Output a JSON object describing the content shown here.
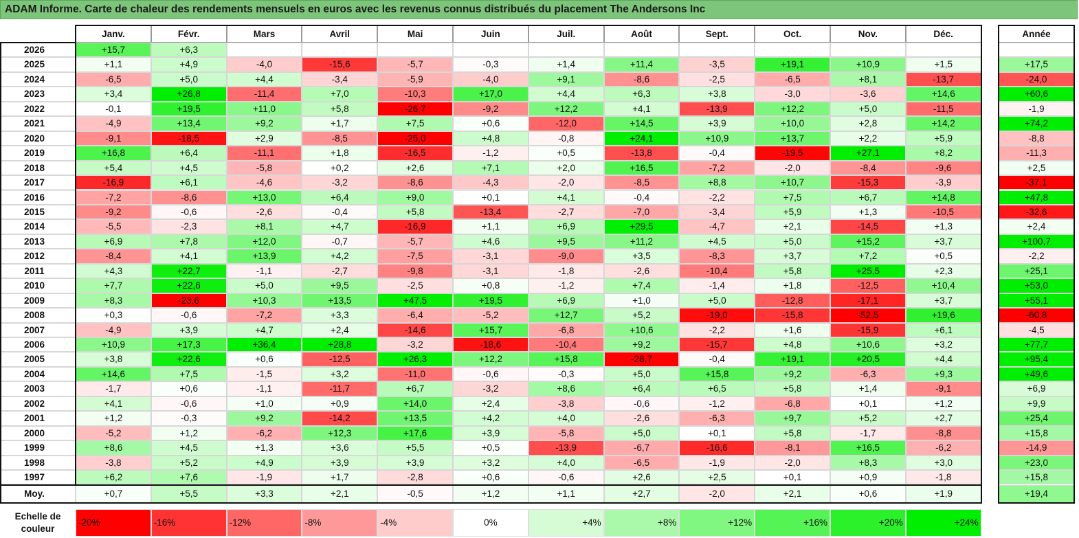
{
  "title": "ADAM Informe. Carte de chaleur des rendements mensuels en euros avec les revenus connus distribués du placement The Andersons Inc",
  "chart_data": {
    "type": "heatmap",
    "title": "ADAM Informe. Carte de chaleur des rendements mensuels en euros avec les revenus connus distribués du placement The Andersons Inc",
    "months": [
      "Janv.",
      "Févr.",
      "Mars",
      "Avril",
      "Mai",
      "Juin",
      "Juil.",
      "Août",
      "Sept.",
      "Oct.",
      "Nov.",
      "Déc."
    ],
    "year_header": "Année",
    "rows": [
      {
        "label": "2026",
        "values": [
          "+15,7",
          "+6,3",
          "",
          "",
          "",
          "",
          "",
          "",
          "",
          "",
          "",
          ""
        ],
        "year": ""
      },
      {
        "label": "2025",
        "values": [
          "+1,1",
          "+4,9",
          "-4,0",
          "-15,6",
          "-5,7",
          "-0,3",
          "+1,4",
          "+11,4",
          "-3,5",
          "+19,1",
          "+10,9",
          "+1,5"
        ],
        "year": "+17,5"
      },
      {
        "label": "2024",
        "values": [
          "-6,5",
          "+5,0",
          "+4,4",
          "-3,4",
          "-5,9",
          "-4,0",
          "+9,1",
          "-8,6",
          "-2,5",
          "-6,5",
          "+8,1",
          "-13,7"
        ],
        "year": "-24,0"
      },
      {
        "label": "2023",
        "values": [
          "+3,4",
          "+26,8",
          "-11,4",
          "+7,0",
          "-10,3",
          "+17,0",
          "+4,4",
          "+6,3",
          "+3,8",
          "-3,0",
          "-3,6",
          "+14,6"
        ],
        "year": "+60,6"
      },
      {
        "label": "2022",
        "values": [
          "-0,1",
          "+19,5",
          "+11,0",
          "+5,8",
          "-26,7",
          "-9,2",
          "+12,2",
          "+4,1",
          "-13,9",
          "+12,2",
          "+5,0",
          "-11,5"
        ],
        "year": "-1,9"
      },
      {
        "label": "2021",
        "values": [
          "-4,9",
          "+13,4",
          "+9,2",
          "+1,7",
          "+7,5",
          "+0,6",
          "-12,0",
          "+14,5",
          "+3,9",
          "+10,0",
          "+2,8",
          "+14,2"
        ],
        "year": "+74,2"
      },
      {
        "label": "2020",
        "values": [
          "-9,1",
          "-18,5",
          "+2,9",
          "-8,5",
          "-25,0",
          "+4,8",
          "-0,8",
          "+24,1",
          "+10,9",
          "+13,7",
          "+2,2",
          "+5,9"
        ],
        "year": "-8,8"
      },
      {
        "label": "2019",
        "values": [
          "+16,8",
          "+6,4",
          "-11,1",
          "+1,8",
          "-16,5",
          "-1,2",
          "+0,5",
          "-13,8",
          "-0,4",
          "-19,5",
          "+27,1",
          "+8,2"
        ],
        "year": "-11,3"
      },
      {
        "label": "2018",
        "values": [
          "+5,4",
          "+4,5",
          "-5,8",
          "+0,2",
          "+2,6",
          "+7,1",
          "+2,0",
          "+16,5",
          "-7,2",
          "-2,0",
          "-8,4",
          "-9,6"
        ],
        "year": "+2,5"
      },
      {
        "label": "2017",
        "values": [
          "-16,9",
          "+6,1",
          "-4,6",
          "-3,2",
          "-8,6",
          "-4,3",
          "-2,0",
          "-8,5",
          "+8,8",
          "+10,7",
          "-15,3",
          "-3,9"
        ],
        "year": "-37,1"
      },
      {
        "label": "2016",
        "values": [
          "-7,2",
          "-8,6",
          "+13,0",
          "+6,4",
          "+9,0",
          "+0,1",
          "+4,1",
          "-0,4",
          "-2,2",
          "+7,5",
          "+6,7",
          "+14,8"
        ],
        "year": "+47,8"
      },
      {
        "label": "2015",
        "values": [
          "-9,2",
          "-0,6",
          "-2,6",
          "-0,4",
          "+5,8",
          "-13,4",
          "-2,7",
          "-7,0",
          "-3,4",
          "+5,9",
          "+1,3",
          "-10,5"
        ],
        "year": "-32,6"
      },
      {
        "label": "2014",
        "values": [
          "-5,5",
          "-2,3",
          "+8,1",
          "+4,7",
          "-16,9",
          "+1,1",
          "+6,9",
          "+29,5",
          "-4,7",
          "+2,1",
          "-14,5",
          "+1,3"
        ],
        "year": "+2,4"
      },
      {
        "label": "2013",
        "values": [
          "+6,9",
          "+7,8",
          "+12,0",
          "-0,7",
          "-5,7",
          "+4,6",
          "+9,5",
          "+11,2",
          "+4,5",
          "+5,0",
          "+15,2",
          "+3,7"
        ],
        "year": "+100,7"
      },
      {
        "label": "2012",
        "values": [
          "-8,4",
          "+4,1",
          "+13,9",
          "+4,2",
          "-7,5",
          "-3,1",
          "-9,0",
          "+3,5",
          "-8,3",
          "+3,7",
          "+7,2",
          "+0,5"
        ],
        "year": "-2,2"
      },
      {
        "label": "2011",
        "values": [
          "+4,3",
          "+22,7",
          "-1,1",
          "-2,7",
          "-9,8",
          "-3,1",
          "-1,8",
          "-2,6",
          "-10,4",
          "+5,8",
          "+25,5",
          "+2,3"
        ],
        "year": "+25,1"
      },
      {
        "label": "2010",
        "values": [
          "+7,7",
          "+22,6",
          "+5,0",
          "+9,5",
          "-2,5",
          "+0,8",
          "-1,2",
          "+7,4",
          "-1,4",
          "+1,8",
          "-12,5",
          "+10,4"
        ],
        "year": "+53,0"
      },
      {
        "label": "2009",
        "values": [
          "+8,3",
          "-23,6",
          "+10,3",
          "+13,5",
          "+47,5",
          "+19,5",
          "+6,9",
          "+1,0",
          "+5,0",
          "-12,8",
          "-17,1",
          "+3,7"
        ],
        "year": "+55,1"
      },
      {
        "label": "2008",
        "values": [
          "+0,3",
          "-0,6",
          "-7,2",
          "+3,3",
          "-6,4",
          "-5,2",
          "+12,7",
          "+5,2",
          "-19,0",
          "-15,8",
          "-52,5",
          "+19,6"
        ],
        "year": "-60,8"
      },
      {
        "label": "2007",
        "values": [
          "-4,9",
          "+3,9",
          "+4,7",
          "+2,4",
          "-14,6",
          "+15,7",
          "-6,8",
          "+10,6",
          "-2,2",
          "+1,6",
          "-15,9",
          "+6,1"
        ],
        "year": "-4,5"
      },
      {
        "label": "2006",
        "values": [
          "+10,9",
          "+17,3",
          "+36,4",
          "+28,8",
          "-3,2",
          "-18,6",
          "-10,4",
          "+9,2",
          "-15,7",
          "+4,8",
          "+10,6",
          "+3,2"
        ],
        "year": "+77,7"
      },
      {
        "label": "2005",
        "values": [
          "+3,8",
          "+22,6",
          "+0,6",
          "-12,5",
          "+26,3",
          "+12,2",
          "+15,8",
          "-28,7",
          "-0,4",
          "+19,1",
          "+20,5",
          "+4,4"
        ],
        "year": "+95,4"
      },
      {
        "label": "2004",
        "values": [
          "+14,6",
          "+7,5",
          "-1,5",
          "+3,2",
          "-11,0",
          "-0,6",
          "-0,3",
          "+5,0",
          "+15,8",
          "+9,2",
          "-6,3",
          "+9,3"
        ],
        "year": "+49,6"
      },
      {
        "label": "2003",
        "values": [
          "-1,7",
          "+0,6",
          "-1,1",
          "-11,7",
          "+6,7",
          "-3,2",
          "+8,6",
          "+6,4",
          "+6,5",
          "+5,8",
          "+1,4",
          "-9,1"
        ],
        "year": "+6,9"
      },
      {
        "label": "2002",
        "values": [
          "+4,1",
          "-0,6",
          "+1,0",
          "+0,9",
          "+14,0",
          "+2,4",
          "-3,8",
          "-0,6",
          "-1,2",
          "-6,8",
          "+0,1",
          "+1,2"
        ],
        "year": "+9,9"
      },
      {
        "label": "2001",
        "values": [
          "+1,2",
          "-0,3",
          "+9,2",
          "-14,2",
          "+13,5",
          "+4,2",
          "+4,0",
          "-2,6",
          "-6,3",
          "+9,7",
          "+5,2",
          "+2,7"
        ],
        "year": "+25,4"
      },
      {
        "label": "2000",
        "values": [
          "-5,2",
          "+1,2",
          "-6,2",
          "+12,3",
          "+17,6",
          "+3,9",
          "-5,8",
          "+5,0",
          "+0,1",
          "+5,8",
          "-1,7",
          "-8,8"
        ],
        "year": "+15,8"
      },
      {
        "label": "1999",
        "values": [
          "+8,6",
          "+4,5",
          "+1,3",
          "+3,6",
          "+5,5",
          "+0,5",
          "-13,9",
          "-6,7",
          "-16,6",
          "-8,1",
          "+16,5",
          "-6,2"
        ],
        "year": "-14,9"
      },
      {
        "label": "1998",
        "values": [
          "-3,8",
          "+5,2",
          "+4,9",
          "+3,9",
          "+3,9",
          "+3,2",
          "+4,0",
          "-6,5",
          "-1,9",
          "-2,0",
          "+8,3",
          "+3,0"
        ],
        "year": "+23,0"
      },
      {
        "label": "1997",
        "values": [
          "+6,2",
          "+7,6",
          "-1,9",
          "+1,7",
          "-2,8",
          "+0,6",
          "-0,6",
          "+2,6",
          "+2,5",
          "+0,1",
          "+0,9",
          "-1,8"
        ],
        "year": "+15,8"
      }
    ],
    "average": {
      "label": "Moy.",
      "values": [
        "+0,7",
        "+5,5",
        "+3,3",
        "+2,1",
        "-0,5",
        "+1,2",
        "+1,1",
        "+2,7",
        "-2,0",
        "+2,1",
        "+0,6",
        "+1,9"
      ],
      "year": "+19,4"
    },
    "scale": {
      "label_line1": "Echelle de",
      "label_line2": "couleur",
      "stops": [
        "-20%",
        "-16%",
        "-12%",
        "-8%",
        "-4%",
        "0%",
        "+4%",
        "+8%",
        "+12%",
        "+16%",
        "+20%",
        "+24%"
      ],
      "stop_values": [
        -20,
        -16,
        -12,
        -8,
        -4,
        0,
        4,
        8,
        12,
        16,
        20,
        24
      ]
    },
    "colors": {
      "negative": "#ff0000",
      "neutral": "#ffffff",
      "positive": "#00ee00"
    }
  }
}
